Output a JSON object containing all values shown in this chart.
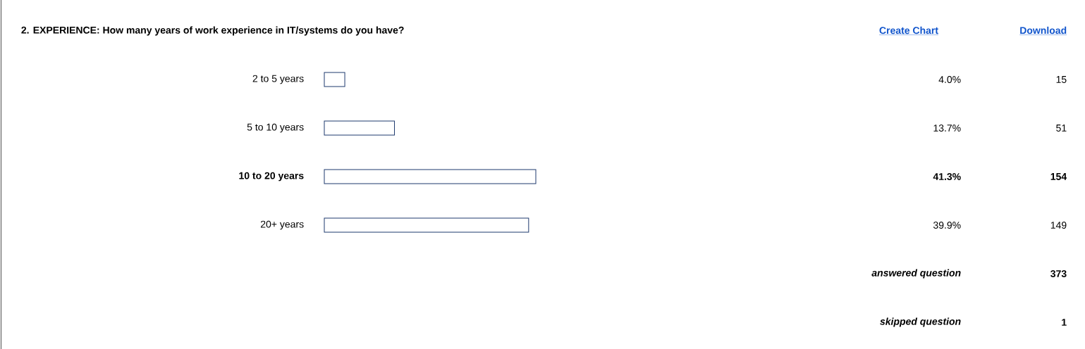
{
  "chart_data": {
    "type": "bar",
    "orientation": "horizontal",
    "title": "2. EXPERIENCE: How many years of work experience in IT/systems do you have?",
    "categories": [
      "2 to 5 years",
      "5 to 10 years",
      "10 to 20 years",
      "20+ years"
    ],
    "values": [
      4.0,
      13.7,
      41.3,
      39.9
    ],
    "value_labels": [
      "4.0%",
      "13.7%",
      "41.3%",
      "39.9%"
    ],
    "color": "#ffffff",
    "tick_labels": "y",
    "annotations": [
      "15",
      "51",
      "154",
      "149",
      "answered question",
      "373",
      "skipped question",
      "1",
      "Create Chart",
      "Download"
    ]
  }
}
